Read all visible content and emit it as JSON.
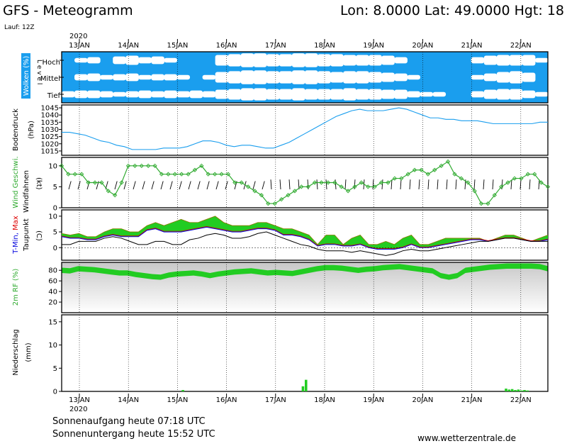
{
  "header": {
    "title": "GFS - Meteogramm",
    "location": "Lon: 8.0000  Lat: 49.0000  Hgt: 18",
    "run": "Lauf: 12Z",
    "year_top": "2020",
    "year_bottom": "2020"
  },
  "dates": [
    "13JAN",
    "14JAN",
    "15JAN",
    "16JAN",
    "17JAN",
    "18JAN",
    "19JAN",
    "20JAN",
    "21JAN",
    "22JAN"
  ],
  "footer": {
    "sunrise": "Sonnenaufgang heute 07:18 UTC",
    "sunset": "Sonnenuntergang heute 15:52 UTC",
    "site": "www.wetterzentrale.de"
  },
  "colors": {
    "cloud": "#1a9eee",
    "wind": "#2faa2f",
    "tmin": "#0000dd",
    "tmax": "#dd0000",
    "fill": "#22cc22",
    "precip": "#22cc22",
    "pressure": "#1a9eee"
  },
  "chart_data": [
    {
      "type": "heatmap",
      "name": "cloud_cover",
      "ylabel_parts": [
        "Wolken",
        "(%)"
      ],
      "level_label": "L e v e l",
      "levels": [
        "Hoch",
        "Mittel",
        "Tief"
      ],
      "note": "coverage per 6h step, 0..1, rows high/mid/low",
      "hoch": [
        0.9,
        0.7,
        0.6,
        0.8,
        0.5,
        0.4,
        0.6,
        0.5,
        0.7,
        0.8,
        0.9,
        0.8,
        0.3,
        0.2,
        0.1,
        0.1,
        0.2,
        0.2,
        0.1,
        0.1,
        0.2,
        0.2,
        0.3,
        0.3,
        0.3,
        0.4,
        0.6,
        0.8,
        0.9,
        0.8,
        0.9,
        0.9,
        0.6,
        0.4,
        0.3,
        0.3,
        0.3,
        0.7
      ],
      "mittel": [
        0.8,
        0.6,
        0.5,
        0.7,
        0.6,
        0.5,
        0.7,
        0.6,
        0.6,
        0.7,
        0.8,
        0.7,
        0.3,
        0.2,
        0.1,
        0.1,
        0.2,
        0.2,
        0.1,
        0.1,
        0.2,
        0.3,
        0.2,
        0.2,
        0.3,
        0.4,
        0.5,
        0.7,
        0.8,
        0.8,
        0.9,
        0.9,
        0.7,
        0.5,
        0.3,
        0.2,
        0.4,
        0.8
      ],
      "tief": [
        0.6,
        0.5,
        0.5,
        0.6,
        0.7,
        0.6,
        0.5,
        0.6,
        0.5,
        0.6,
        0.5,
        0.6,
        0.4,
        0.3,
        0.2,
        0.2,
        0.3,
        0.3,
        0.2,
        0.3,
        0.3,
        0.3,
        0.2,
        0.3,
        0.3,
        0.4,
        0.4,
        0.6,
        0.7,
        0.7,
        0.8,
        0.8,
        0.6,
        0.4,
        0.3,
        0.3,
        0.5,
        0.7
      ]
    },
    {
      "type": "line",
      "name": "pressure",
      "ylabel_parts": [
        "Bodendruck",
        "(hPa)"
      ],
      "yticks": [
        1015,
        1020,
        1025,
        1030,
        1035,
        1040,
        1045
      ],
      "ylim": [
        1012,
        1047
      ],
      "values": [
        1028,
        1028,
        1027,
        1026,
        1024,
        1022,
        1021,
        1019,
        1018,
        1016,
        1016,
        1016,
        1016,
        1017,
        1017,
        1017,
        1018,
        1020,
        1022,
        1022,
        1021,
        1019,
        1018,
        1019,
        1019,
        1018,
        1017,
        1017,
        1019,
        1021,
        1024,
        1027,
        1030,
        1033,
        1036,
        1039,
        1041,
        1043,
        1044,
        1043,
        1043,
        1043,
        1044,
        1045,
        1044,
        1042,
        1040,
        1038,
        1038,
        1037,
        1037,
        1036,
        1036,
        1036,
        1035,
        1034,
        1034,
        1034,
        1034,
        1034,
        1034,
        1035,
        1035
      ]
    },
    {
      "type": "line",
      "name": "wind",
      "ylabel_parts": [
        "Wind Geschwi.",
        "Windfahnen"
      ],
      "unit": "(kt)",
      "yticks": [
        0,
        5,
        10
      ],
      "ylim": [
        0,
        12
      ],
      "values": [
        10,
        8,
        8,
        8,
        6,
        6,
        6,
        4,
        3,
        6,
        10,
        10,
        10,
        10,
        10,
        8,
        8,
        8,
        8,
        8,
        9,
        10,
        8,
        8,
        8,
        8,
        6,
        6,
        5,
        4,
        3,
        1,
        1,
        2,
        3,
        4,
        5,
        5,
        6,
        6,
        6,
        6,
        5,
        4,
        5,
        6,
        5,
        5,
        6,
        6,
        7,
        7,
        8,
        9,
        9,
        8,
        9,
        10,
        11,
        8,
        7,
        6,
        4,
        1,
        1,
        3,
        5,
        6,
        7,
        7,
        8,
        8,
        6,
        5
      ]
    },
    {
      "type": "area",
      "name": "temperature",
      "ylabel_parts": [
        "T-Min,",
        "Max",
        "Taupunkt"
      ],
      "unit": "(C)",
      "yticks": [
        0,
        5,
        10
      ],
      "ylim": [
        -4,
        12
      ],
      "tmax": [
        4.5,
        4,
        4.5,
        3.5,
        3.5,
        5,
        6,
        6,
        5,
        5,
        7,
        8,
        7,
        8,
        9,
        8,
        8,
        9,
        10,
        8,
        7,
        7,
        7,
        8,
        8,
        7,
        6,
        6,
        5,
        4,
        1,
        4,
        4,
        1,
        3,
        4,
        1,
        1,
        2,
        1,
        3,
        4,
        1,
        1,
        2,
        3,
        3,
        3,
        3,
        3,
        2,
        3,
        4,
        4,
        3,
        2,
        3,
        4
      ],
      "tmin": [
        3.5,
        3,
        3,
        2.5,
        2.5,
        3.5,
        4,
        3.5,
        3.5,
        3.5,
        5.5,
        6,
        5,
        5,
        5,
        5.5,
        6,
        6.5,
        6,
        5.5,
        5,
        5,
        5.5,
        6,
        6,
        5.5,
        4,
        4,
        3.5,
        2.5,
        0.5,
        1,
        1,
        0.5,
        0.5,
        1,
        0,
        -0.5,
        -0.5,
        -0.5,
        0,
        1,
        0,
        0,
        0.5,
        1,
        1.5,
        2,
        2.5,
        2.5,
        2,
        2.5,
        3,
        3,
        2.5,
        2,
        2,
        2.5
      ],
      "dew": [
        1,
        1,
        2,
        2,
        2,
        3,
        3.5,
        3,
        2,
        1,
        1,
        2,
        2,
        1,
        1,
        2.5,
        3,
        4,
        4.5,
        4,
        3,
        3,
        3.5,
        4.5,
        5,
        4,
        3,
        2,
        1,
        0.5,
        -0.5,
        -1,
        -1,
        -1,
        -1.5,
        -1,
        -1.5,
        -2,
        -2.5,
        -2,
        -1,
        -0.5,
        -1,
        -1,
        -0.5,
        0,
        0.5,
        1,
        1.5,
        2,
        2,
        2.5,
        3,
        3,
        2.5,
        2,
        2,
        2
      ]
    },
    {
      "type": "area",
      "name": "humidity",
      "ylabel_parts": [
        "2m RF",
        "(%)"
      ],
      "yticks": [
        20,
        40,
        60,
        80
      ],
      "ylim": [
        0,
        95
      ],
      "values": [
        85,
        84,
        88,
        87,
        86,
        84,
        82,
        80,
        80,
        77,
        75,
        73,
        72,
        76,
        78,
        79,
        80,
        78,
        75,
        78,
        80,
        82,
        83,
        84,
        82,
        80,
        81,
        80,
        79,
        82,
        85,
        88,
        90,
        90,
        89,
        87,
        85,
        87,
        88,
        90,
        91,
        92,
        90,
        88,
        86,
        84,
        75,
        72,
        75,
        85,
        87,
        89,
        91,
        92,
        93,
        93,
        93,
        93,
        92,
        88
      ]
    },
    {
      "type": "bar",
      "name": "precipitation",
      "ylabel_parts": [
        "Niederschlag",
        "(mm)"
      ],
      "yticks": [
        0,
        5,
        10,
        15
      ],
      "ylim": [
        0,
        16.5
      ],
      "values": [
        0,
        0,
        0,
        0,
        0,
        0,
        0,
        0,
        0,
        0,
        0,
        0,
        0,
        0,
        0,
        0,
        0,
        0,
        0,
        0,
        0,
        0,
        0,
        0,
        0,
        0,
        0,
        0,
        0,
        0,
        0,
        0,
        0,
        0,
        0,
        0,
        0,
        0,
        0,
        0.3,
        0,
        0,
        0,
        0,
        0,
        0,
        0,
        0,
        0,
        0,
        0,
        0,
        0,
        0,
        0,
        0,
        0,
        0,
        0,
        0,
        0,
        0,
        0,
        0,
        0,
        0,
        0,
        0,
        0,
        0,
        0,
        0,
        0,
        0,
        0,
        0,
        0,
        0,
        1.1,
        2.5,
        0,
        0,
        0,
        0,
        0,
        0,
        0,
        0,
        0,
        0,
        0,
        0,
        0,
        0,
        0,
        0,
        0,
        0,
        0,
        0,
        0,
        0,
        0,
        0,
        0,
        0,
        0,
        0,
        0,
        0,
        0,
        0,
        0,
        0,
        0,
        0,
        0,
        0,
        0,
        0,
        0,
        0,
        0,
        0,
        0,
        0,
        0,
        0,
        0,
        0,
        0,
        0,
        0,
        0,
        0,
        0,
        0,
        0,
        0,
        0,
        0,
        0,
        0,
        0,
        0.6,
        0.4,
        0.5,
        0.3,
        0.4,
        0.2,
        0.3,
        0.2,
        0,
        0,
        0,
        0,
        0,
        0
      ]
    }
  ]
}
